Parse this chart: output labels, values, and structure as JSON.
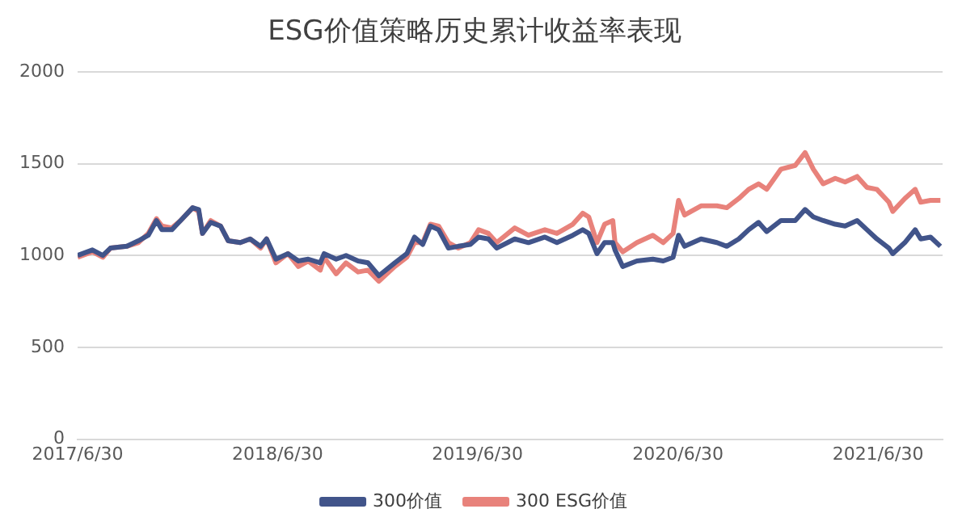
{
  "chart_data": {
    "type": "line",
    "title": "ESG价值策略历史累计收益率表现",
    "x": [
      "2017-06-30",
      "2017-07-27",
      "2017-08-15",
      "2017-08-29",
      "2017-09-28",
      "2017-10-19",
      "2017-11-06",
      "2017-11-21",
      "2017-12-01",
      "2017-12-19",
      "2018-01-04",
      "2018-01-26",
      "2018-02-06",
      "2018-02-13",
      "2018-02-28",
      "2018-03-18",
      "2018-04-01",
      "2018-04-23",
      "2018-05-11",
      "2018-05-30",
      "2018-06-10",
      "2018-06-27",
      "2018-07-19",
      "2018-08-07",
      "2018-08-25",
      "2018-09-16",
      "2018-09-23",
      "2018-10-15",
      "2018-11-02",
      "2018-11-24",
      "2018-12-12",
      "2019-01-01",
      "2019-01-30",
      "2019-02-21",
      "2019-03-07",
      "2019-03-22",
      "2019-04-05",
      "2019-04-20",
      "2019-05-08",
      "2019-05-26",
      "2019-06-17",
      "2019-07-02",
      "2019-07-20",
      "2019-08-04",
      "2019-09-06",
      "2019-10-01",
      "2019-10-31",
      "2019-11-22",
      "2019-12-21",
      "2020-01-08",
      "2020-01-19",
      "2020-02-03",
      "2020-02-17",
      "2020-03-03",
      "2020-03-07",
      "2020-03-21",
      "2020-04-16",
      "2020-05-15",
      "2020-06-03",
      "2020-06-21",
      "2020-07-01",
      "2020-07-12",
      "2020-08-11",
      "2020-09-09",
      "2020-09-27",
      "2020-10-19",
      "2020-11-06",
      "2020-11-24",
      "2020-12-09",
      "2021-01-04",
      "2021-01-30",
      "2021-02-17",
      "2021-03-04",
      "2021-03-22",
      "2021-04-13",
      "2021-05-01",
      "2021-05-23",
      "2021-06-10",
      "2021-06-28",
      "2021-07-20",
      "2021-07-27",
      "2021-08-18",
      "2021-09-06",
      "2021-09-16",
      "2021-10-04",
      "2021-10-22"
    ],
    "series": [
      {
        "name": "300价值",
        "color": "#41548a",
        "values": [
          1000,
          1030,
          1000,
          1040,
          1050,
          1080,
          1110,
          1190,
          1140,
          1140,
          1190,
          1260,
          1250,
          1120,
          1180,
          1160,
          1080,
          1070,
          1090,
          1050,
          1090,
          980,
          1010,
          970,
          980,
          960,
          1010,
          980,
          1000,
          970,
          960,
          890,
          960,
          1010,
          1100,
          1060,
          1160,
          1140,
          1040,
          1050,
          1060,
          1100,
          1090,
          1040,
          1090,
          1070,
          1100,
          1070,
          1110,
          1140,
          1120,
          1010,
          1070,
          1070,
          1030,
          940,
          970,
          980,
          970,
          990,
          1110,
          1050,
          1090,
          1070,
          1050,
          1090,
          1140,
          1180,
          1130,
          1190,
          1190,
          1250,
          1210,
          1190,
          1170,
          1160,
          1190,
          1140,
          1090,
          1040,
          1010,
          1070,
          1140,
          1090,
          1100,
          1050
        ]
      },
      {
        "name": "300 ESG价值",
        "color": "#e8827b",
        "values": [
          990,
          1020,
          990,
          1040,
          1050,
          1070,
          1120,
          1200,
          1160,
          1150,
          1190,
          1260,
          1240,
          1120,
          1190,
          1160,
          1080,
          1070,
          1090,
          1040,
          1090,
          960,
          1010,
          940,
          970,
          920,
          990,
          900,
          960,
          910,
          920,
          860,
          940,
          990,
          1070,
          1070,
          1170,
          1160,
          1070,
          1040,
          1070,
          1140,
          1120,
          1070,
          1150,
          1110,
          1140,
          1120,
          1170,
          1230,
          1210,
          1070,
          1170,
          1190,
          1070,
          1020,
          1070,
          1110,
          1070,
          1120,
          1300,
          1220,
          1270,
          1270,
          1260,
          1310,
          1360,
          1390,
          1360,
          1470,
          1490,
          1560,
          1470,
          1390,
          1420,
          1400,
          1430,
          1370,
          1360,
          1290,
          1240,
          1310,
          1360,
          1290,
          1300,
          1300
        ]
      }
    ],
    "xlim": [
      "2017-06-30",
      "2021-10-26"
    ],
    "xticks": [
      {
        "value": "2017-06-30",
        "label": "2017/6/30"
      },
      {
        "value": "2018-06-30",
        "label": "2018/6/30"
      },
      {
        "value": "2019-06-30",
        "label": "2019/6/30"
      },
      {
        "value": "2020-06-30",
        "label": "2020/6/30"
      },
      {
        "value": "2021-06-30",
        "label": "2021/6/30"
      }
    ],
    "ylim": [
      0,
      2000
    ],
    "yticks": [
      0,
      500,
      1000,
      1500,
      2000
    ],
    "grid": "y",
    "legend": "bottom",
    "marker": "none",
    "line_style": "solid"
  }
}
